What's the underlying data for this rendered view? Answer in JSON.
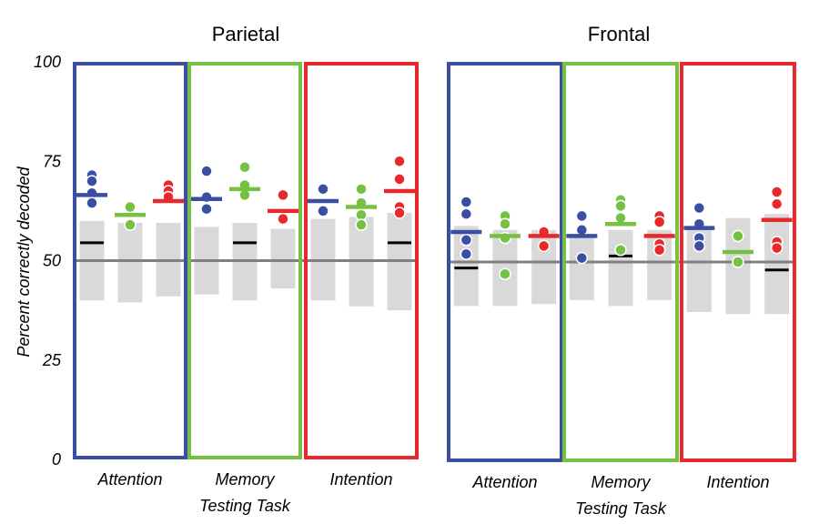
{
  "chart_data": [
    {
      "type": "scatter",
      "title": "Parietal",
      "ylabel": "Percent correctly decoded",
      "xlabel": "Testing Task",
      "ylim": [
        0,
        100
      ],
      "yticks": [
        "100",
        "75",
        "50",
        "25",
        "0"
      ],
      "chance_level": 50,
      "colors": {
        "Attention": "#3b4ea3",
        "Memory": "#76c043",
        "Intention": "#e8282b",
        "null_band": "#d9d9d9",
        "chance_line": "#808080"
      },
      "groups": [
        {
          "label": "Attention",
          "frame": "Attention",
          "conditions": [
            {
              "decoder": "Attention",
              "mean": 66.5,
              "points": [
                71.5,
                70,
                67,
                64.5
              ],
              "null_range": [
                40,
                60
              ],
              "null_mean": 54.5
            },
            {
              "decoder": "Memory",
              "mean": 61.5,
              "points": [
                63.5,
                59
              ],
              "null_range": [
                39.5,
                59.5
              ],
              "null_mean": null
            },
            {
              "decoder": "Intention",
              "mean": 65,
              "points": [
                69,
                67.5,
                66
              ],
              "null_range": [
                41,
                59.5
              ],
              "null_mean": null
            }
          ]
        },
        {
          "label": "Memory",
          "frame": "Memory",
          "conditions": [
            {
              "decoder": "Attention",
              "mean": 65.5,
              "points": [
                72.5,
                66,
                63
              ],
              "null_range": [
                41.5,
                58.5
              ],
              "null_mean": null
            },
            {
              "decoder": "Memory",
              "mean": 68,
              "points": [
                73.5,
                69,
                66.5
              ],
              "null_range": [
                40,
                59.5
              ],
              "null_mean": 54.5
            },
            {
              "decoder": "Intention",
              "mean": 62.5,
              "points": [
                66.5,
                60.5
              ],
              "null_range": [
                43,
                58
              ],
              "null_mean": null
            }
          ]
        },
        {
          "label": "Intention",
          "frame": "Intention",
          "conditions": [
            {
              "decoder": "Attention",
              "mean": 65,
              "points": [
                68,
                62.5
              ],
              "null_range": [
                40,
                60.5
              ],
              "null_mean": null
            },
            {
              "decoder": "Memory",
              "mean": 63.5,
              "points": [
                68,
                64.5,
                61.5,
                59
              ],
              "null_range": [
                38.5,
                61
              ],
              "null_mean": null
            },
            {
              "decoder": "Intention",
              "mean": 67.5,
              "points": [
                75,
                70.5,
                63.5,
                62
              ],
              "null_range": [
                37.5,
                62
              ],
              "null_mean": 54.5
            }
          ]
        }
      ]
    },
    {
      "type": "scatter",
      "title": "Frontal",
      "ylabel": "",
      "xlabel": "Testing Task",
      "ylim": [
        0,
        100
      ],
      "chance_level": 50,
      "colors": {
        "Attention": "#3b4ea3",
        "Memory": "#76c043",
        "Intention": "#e8282b",
        "null_band": "#d9d9d9",
        "chance_line": "#808080"
      },
      "groups": [
        {
          "label": "Attention",
          "frame": "Attention",
          "conditions": [
            {
              "decoder": "Attention",
              "mean": 57.5,
              "points": [
                65,
                62,
                55.5,
                52
              ],
              "null_range": [
                39,
                59
              ],
              "null_mean": 48.5
            },
            {
              "decoder": "Memory",
              "mean": 56.5,
              "points": [
                61.5,
                59.5,
                56,
                47
              ],
              "null_range": [
                39,
                58
              ],
              "null_mean": null
            },
            {
              "decoder": "Intention",
              "mean": 56.5,
              "points": [
                57.5,
                54
              ],
              "null_range": [
                39.5,
                58
              ],
              "null_mean": null
            }
          ]
        },
        {
          "label": "Memory",
          "frame": "Memory",
          "conditions": [
            {
              "decoder": "Attention",
              "mean": 56.5,
              "points": [
                61.5,
                58,
                51
              ],
              "null_range": [
                40.5,
                57
              ],
              "null_mean": null
            },
            {
              "decoder": "Memory",
              "mean": 59.5,
              "points": [
                65.5,
                64,
                61,
                53
              ],
              "null_range": [
                39,
                58
              ],
              "null_mean": 51.5
            },
            {
              "decoder": "Intention",
              "mean": 56.5,
              "points": [
                61.5,
                60,
                54.5,
                53
              ],
              "null_range": [
                40.5,
                58
              ],
              "null_mean": null
            }
          ]
        },
        {
          "label": "Intention",
          "frame": "Intention",
          "conditions": [
            {
              "decoder": "Attention",
              "mean": 58.5,
              "points": [
                63.5,
                59.5,
                56,
                54
              ],
              "null_range": [
                37.5,
                59
              ],
              "null_mean": null
            },
            {
              "decoder": "Memory",
              "mean": 52.5,
              "points": [
                56.5,
                50
              ],
              "null_range": [
                37,
                61
              ],
              "null_mean": null
            },
            {
              "decoder": "Intention",
              "mean": 60.5,
              "points": [
                67.5,
                64.5,
                55,
                53.5
              ],
              "null_range": [
                37,
                62
              ],
              "null_mean": 48
            }
          ]
        }
      ]
    }
  ]
}
